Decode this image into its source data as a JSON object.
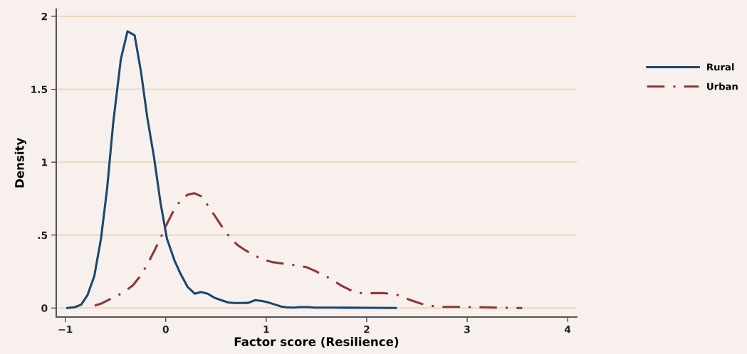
{
  "chart_data": {
    "type": "line",
    "xlabel": "Factor score (Resilience)",
    "ylabel": "Density",
    "xlim": [
      -1.09,
      4.09
    ],
    "ylim": [
      -0.062,
      2.05
    ],
    "xticks": [
      {
        "value": -1,
        "label": "−1"
      },
      0,
      1,
      2,
      3,
      4
    ],
    "yticks": [
      0,
      {
        "value": 0.5,
        "label": ".5"
      },
      1,
      1.5,
      2
    ],
    "grid": "y",
    "legend": "top right",
    "marker": "none",
    "series": [
      {
        "name": "Rural",
        "color": "#1a476f",
        "line_style": "solid",
        "x": [
          -0.979,
          -0.908,
          -0.842,
          -0.778,
          -0.711,
          -0.645,
          -0.584,
          -0.523,
          -0.447,
          -0.381,
          -0.31,
          -0.246,
          -0.184,
          -0.116,
          -0.052,
          0.012,
          0.088,
          0.151,
          0.218,
          0.289,
          0.35,
          0.418,
          0.485,
          0.551,
          0.622,
          0.68,
          0.75,
          0.82,
          0.89,
          0.95,
          1.01,
          1.08,
          1.15,
          1.2,
          1.27,
          1.34,
          1.41,
          1.48,
          1.54,
          1.68,
          1.8,
          2.0,
          2.29
        ],
        "values": [
          0,
          0.005,
          0.023,
          0.09,
          0.22,
          0.474,
          0.817,
          1.27,
          1.707,
          1.897,
          1.87,
          1.617,
          1.307,
          1.03,
          0.72,
          0.474,
          0.324,
          0.229,
          0.144,
          0.098,
          0.11,
          0.098,
          0.07,
          0.054,
          0.038,
          0.034,
          0.034,
          0.035,
          0.054,
          0.049,
          0.04,
          0.025,
          0.01,
          0.005,
          0.003,
          0.006,
          0.006,
          0.003,
          0.003,
          0.003,
          0.002,
          0.001,
          0
        ]
      },
      {
        "name": "Urban",
        "color": "#90353b",
        "line_style": "dashdot",
        "x": [
          -0.707,
          -0.636,
          -0.518,
          -0.423,
          -0.328,
          -0.258,
          -0.187,
          -0.116,
          -0.045,
          0.002,
          0.073,
          0.144,
          0.215,
          0.286,
          0.357,
          0.428,
          0.499,
          0.57,
          0.641,
          0.712,
          0.783,
          0.853,
          0.924,
          0.995,
          1.066,
          1.137,
          1.279,
          1.397,
          1.49,
          1.61,
          1.752,
          1.87,
          1.965,
          2.154,
          2.296,
          2.437,
          2.579,
          2.72,
          2.934,
          3.147,
          3.335,
          3.548
        ],
        "values": [
          0.016,
          0.032,
          0.073,
          0.106,
          0.155,
          0.215,
          0.294,
          0.389,
          0.49,
          0.563,
          0.661,
          0.735,
          0.776,
          0.787,
          0.765,
          0.694,
          0.621,
          0.547,
          0.482,
          0.433,
          0.4,
          0.372,
          0.346,
          0.327,
          0.314,
          0.307,
          0.294,
          0.281,
          0.253,
          0.212,
          0.152,
          0.111,
          0.1,
          0.103,
          0.092,
          0.054,
          0.021,
          0.008,
          0.007,
          0.005,
          0.002,
          0
        ]
      }
    ]
  }
}
